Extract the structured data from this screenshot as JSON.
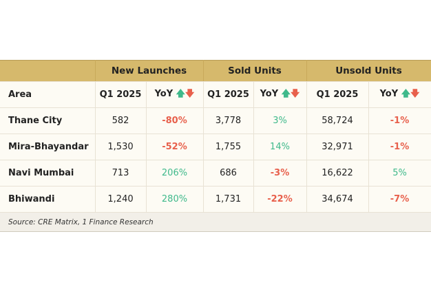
{
  "groups": [
    "",
    "New Launches",
    "Sold Units",
    "Unsold Units"
  ],
  "subheaders": {
    "area": "Area",
    "q": "Q1 2025",
    "yoy": "YoY"
  },
  "icons": {
    "up": "arrow-up-icon",
    "down": "arrow-down-icon",
    "up_color": "#3fb98b",
    "down_color": "#e8604c"
  },
  "rows": [
    {
      "area": "Thane City",
      "nl_q": "582",
      "nl_yoy": "-80%",
      "su_q": "3,778",
      "su_yoy": "3%",
      "uu_q": "58,724",
      "uu_yoy": "-1%"
    },
    {
      "area": "Mira-Bhayandar",
      "nl_q": "1,530",
      "nl_yoy": "-52%",
      "su_q": "1,755",
      "su_yoy": "14%",
      "uu_q": "32,971",
      "uu_yoy": "-1%"
    },
    {
      "area": "Navi Mumbai",
      "nl_q": "713",
      "nl_yoy": "206%",
      "su_q": "686",
      "su_yoy": "-3%",
      "uu_q": "16,622",
      "uu_yoy": "5%"
    },
    {
      "area": "Bhiwandi",
      "nl_q": "1,240",
      "nl_yoy": "280%",
      "su_q": "1,731",
      "su_yoy": "-22%",
      "uu_q": "34,674",
      "uu_yoy": "-7%"
    }
  ],
  "source": "Source: CRE Matrix, 1 Finance Research"
}
